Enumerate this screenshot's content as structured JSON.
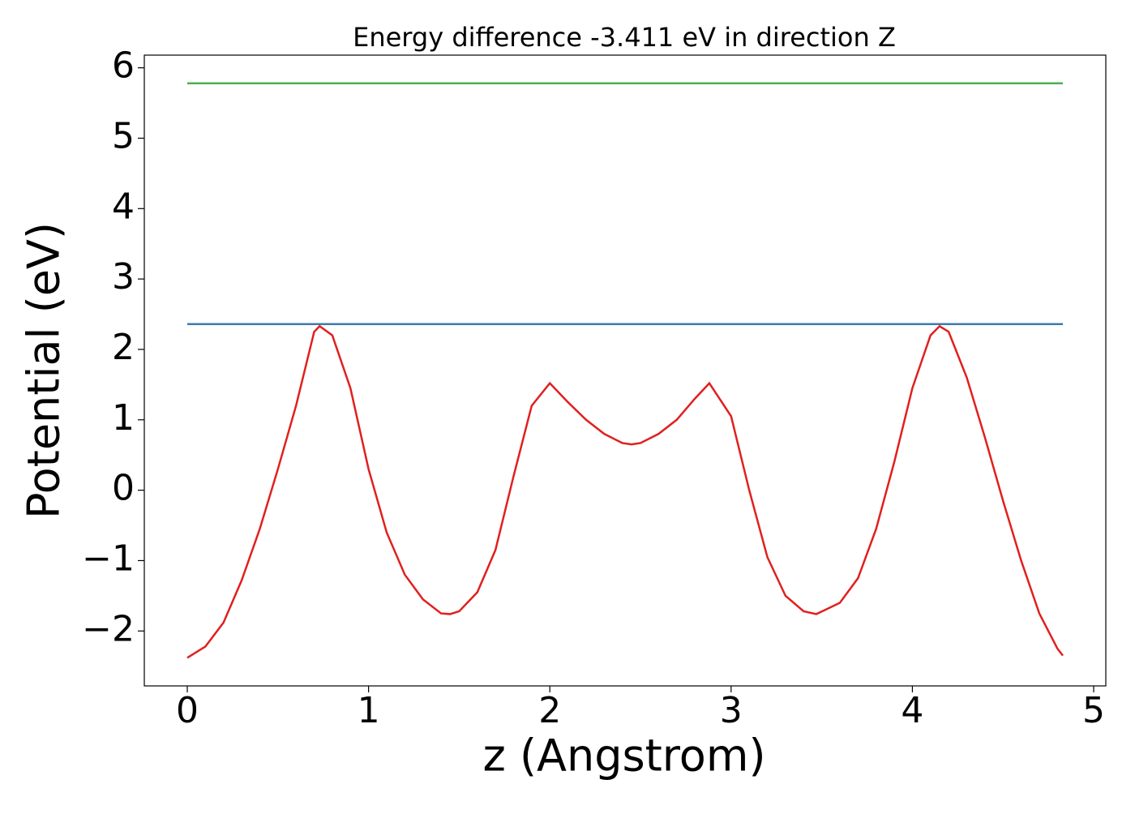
{
  "chart_data": {
    "type": "line",
    "title": "Energy difference -3.411 eV in direction Z",
    "x_label": "z (Angstrom)",
    "y_label": "Potential (eV)",
    "xlim": [
      -0.237,
      5.067
    ],
    "ylim": [
      -2.78,
      6.18
    ],
    "xticks": [
      0,
      1,
      2,
      3,
      4,
      5
    ],
    "yticks": [
      {
        "value": -2,
        "label": "−2"
      },
      {
        "value": -1,
        "label": "−1"
      },
      0,
      1,
      2,
      3,
      4,
      5,
      6
    ],
    "series": [
      {
        "color": "#4caf50",
        "x": [
          0,
          4.83
        ],
        "values": [
          5.78,
          5.78
        ]
      },
      {
        "color": "#3b7bb0",
        "x": [
          0,
          4.83
        ],
        "values": [
          2.36,
          2.36
        ]
      },
      {
        "color": "#e0201e",
        "x": [
          0,
          0.1,
          0.2,
          0.3,
          0.4,
          0.5,
          0.6,
          0.7,
          0.73,
          0.8,
          0.9,
          1.0,
          1.1,
          1.2,
          1.3,
          1.4,
          1.45,
          1.5,
          1.6,
          1.7,
          1.8,
          1.9,
          2.0,
          2.1,
          2.2,
          2.3,
          2.4,
          2.45,
          2.5,
          2.6,
          2.7,
          2.8,
          2.88,
          3.0,
          3.1,
          3.2,
          3.3,
          3.4,
          3.47,
          3.6,
          3.7,
          3.8,
          3.9,
          4.0,
          4.1,
          4.15,
          4.2,
          4.3,
          4.4,
          4.5,
          4.6,
          4.7,
          4.8,
          4.83
        ],
        "values": [
          -2.38,
          -2.22,
          -1.88,
          -1.28,
          -0.55,
          0.3,
          1.2,
          2.25,
          2.33,
          2.2,
          1.45,
          0.3,
          -0.6,
          -1.2,
          -1.55,
          -1.75,
          -1.76,
          -1.72,
          -1.45,
          -0.85,
          0.2,
          1.2,
          1.52,
          1.25,
          1.0,
          0.8,
          0.67,
          0.65,
          0.67,
          0.8,
          1.0,
          1.3,
          1.52,
          1.05,
          0.0,
          -0.95,
          -1.5,
          -1.72,
          -1.76,
          -1.6,
          -1.25,
          -0.55,
          0.4,
          1.45,
          2.2,
          2.33,
          2.25,
          1.6,
          0.75,
          -0.15,
          -1.0,
          -1.75,
          -2.25,
          -2.35
        ]
      }
    ]
  }
}
